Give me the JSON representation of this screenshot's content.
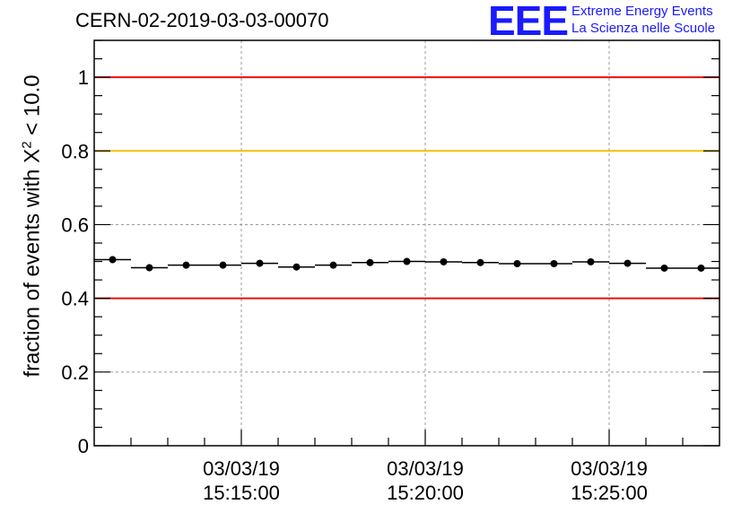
{
  "header": {
    "title": "CERN-02-2019-03-03-00070",
    "logo": "EEE",
    "logo_line1": "Extreme Energy Events",
    "logo_line2": "La Scienza nelle Scuole"
  },
  "axis": {
    "ylabel_main": "fraction of events with X",
    "ylabel_sup": "2",
    "ylabel_tail": " < 10.0"
  },
  "chart_data": {
    "type": "scatter",
    "ylim": [
      0,
      1.1
    ],
    "xlim_minutes": [
      0,
      17
    ],
    "grid": true,
    "yticks": [
      {
        "v": 0,
        "label": "0"
      },
      {
        "v": 0.2,
        "label": "0.2"
      },
      {
        "v": 0.4,
        "label": "0.4"
      },
      {
        "v": 0.6,
        "label": "0.6"
      },
      {
        "v": 0.8,
        "label": "0.8"
      },
      {
        "v": 1,
        "label": "1"
      }
    ],
    "xticks": [
      {
        "v": 4,
        "date": "03/03/19",
        "time": "15:15:00"
      },
      {
        "v": 9,
        "date": "03/03/19",
        "time": "15:20:00"
      },
      {
        "v": 14,
        "date": "03/03/19",
        "time": "15:25:00"
      }
    ],
    "reference_lines": [
      {
        "y": 1.0,
        "color": "#e81010"
      },
      {
        "y": 0.8,
        "color": "#f5c000"
      },
      {
        "y": 0.4,
        "color": "#e81010"
      }
    ],
    "points": [
      0.505,
      0.483,
      0.49,
      0.49,
      0.495,
      0.485,
      0.49,
      0.497,
      0.5,
      0.499,
      0.497,
      0.494,
      0.494,
      0.499,
      0.495,
      0.482,
      0.482
    ]
  }
}
